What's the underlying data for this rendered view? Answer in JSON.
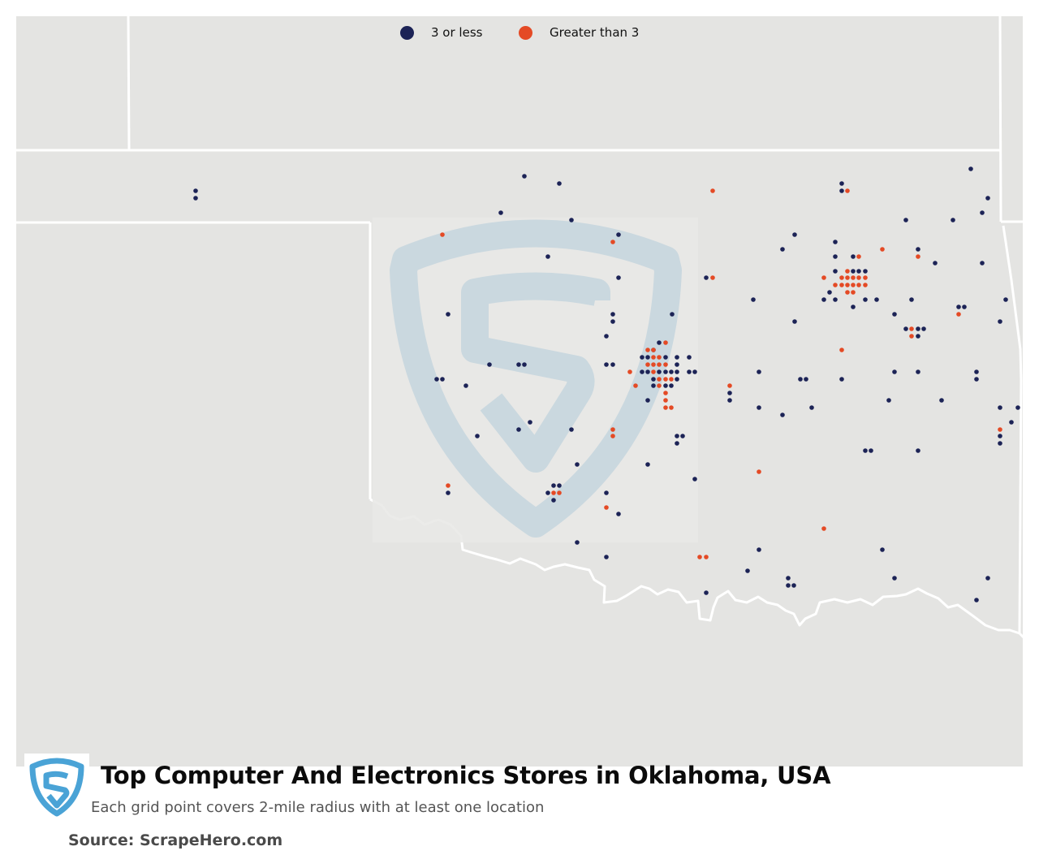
{
  "legend": {
    "items": [
      {
        "label": "3 or less",
        "color": "#1c2356"
      },
      {
        "label": "Greater than 3",
        "color": "#e44a25"
      }
    ]
  },
  "title": "Top Computer And Electronics Stores in Oklahoma, USA",
  "subtitle": "Each grid point covers 2-mile radius with at least one location",
  "source": "Source: ScrapeHero.com",
  "colors": {
    "background": "#e4e4e2",
    "border": "#ffffff",
    "low": "#1c2356",
    "high": "#e44a25",
    "watermark": "#c8d7df",
    "logo": "#4aa3d6"
  },
  "icons": {
    "brand": "scrapehero-shield-logo-icon"
  }
}
